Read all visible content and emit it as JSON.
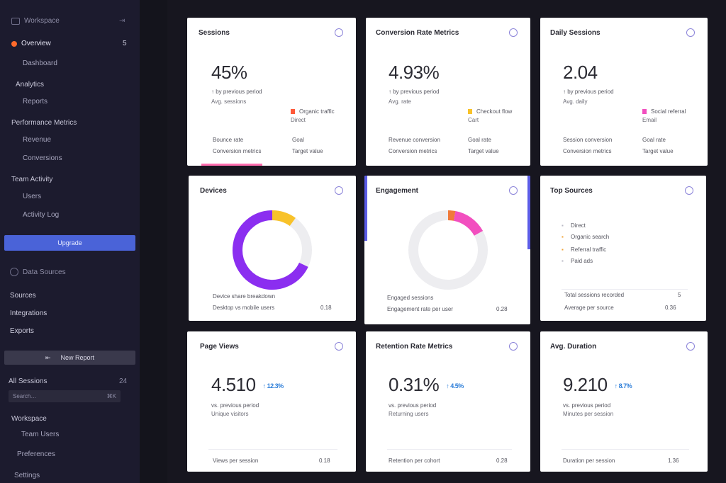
{
  "sidebar": {
    "header": "Workspace",
    "header_right": "⇥",
    "active_item": "Overview",
    "active_count": "5",
    "items": [
      {
        "label": "Dashboard"
      },
      {
        "label": "Analytics"
      },
      {
        "label": "Reports"
      },
      {
        "label": "Performance Metrics"
      },
      {
        "label": "Revenue"
      },
      {
        "label": "Conversions"
      },
      {
        "label": "Team Activity"
      },
      {
        "label": "Users"
      },
      {
        "label": "Activity Log"
      }
    ],
    "primary_button": "Upgrade",
    "section2_title": "Data Sources",
    "section2_items": [
      {
        "label": "Sources"
      },
      {
        "label": "Integrations"
      },
      {
        "label": "Exports"
      }
    ],
    "secondary_button": "New Report",
    "secondary_icon": "⇤",
    "section3_title": "All Sessions",
    "section3_right": "24",
    "input_placeholder": "Search…",
    "input_right": "⌘K",
    "bottom_items": [
      {
        "label": "Workspace"
      },
      {
        "label": "Team Users"
      },
      {
        "label": "Preferences"
      },
      {
        "label": "Settings"
      }
    ]
  },
  "cards": {
    "c1": {
      "title": "Sessions",
      "value": "45%",
      "sub1": "↑ by previous period",
      "sub2": "Avg. sessions",
      "legend": "Organic traffic",
      "legend2": "Direct",
      "foot_l1": "Bounce rate",
      "foot_l2": "Conversion metrics",
      "foot_r1": "Goal",
      "foot_r2": "Target value"
    },
    "c2": {
      "title": "Conversion Rate Metrics",
      "value": "4.93%",
      "sub1": "↑ by previous period",
      "sub2": "Avg. rate",
      "legend": "Checkout flow",
      "legend2": "Cart",
      "foot_l1": "Revenue conversion",
      "foot_l2": "Conversion metrics",
      "foot_r1": "Goal rate",
      "foot_r2": "Target value"
    },
    "c3": {
      "title": "Daily Sessions",
      "value": "2.04",
      "sub1": "↑ by previous period",
      "sub2": "Avg. daily",
      "legend": "Social referral",
      "legend2": "Email",
      "foot_l1": "Session conversion",
      "foot_l2": "Conversion metrics",
      "foot_r1": "Goal rate",
      "foot_r2": "Target value"
    },
    "c4": {
      "title": "Devices",
      "foot_l1": "Device share breakdown",
      "foot_l2": "Desktop vs mobile users",
      "foot_r": "0.18"
    },
    "c5": {
      "title": "Engagement",
      "foot_l1": "Engaged sessions",
      "foot_l2": "Engagement rate per user",
      "foot_r": "0.28"
    },
    "c6": {
      "title": "Top Sources",
      "rows": [
        {
          "label": "Direct"
        },
        {
          "label": "Organic search"
        },
        {
          "label": "Referral traffic"
        },
        {
          "label": "Paid ads"
        }
      ],
      "foot_l1": "Total sessions recorded",
      "foot_r1": "5",
      "foot_l2": "Average per source",
      "foot_r2": "0.36"
    },
    "c7": {
      "title": "Page Views",
      "value": "4.510",
      "badge": "↑ 12.3%",
      "sub1": "vs. previous period",
      "sub2": "Unique visitors",
      "foot_l": "Views per session",
      "foot_r": "0.18"
    },
    "c8": {
      "title": "Retention Rate Metrics",
      "value": "0.31%",
      "badge": "↑ 4.5%",
      "sub1": "vs. previous period",
      "sub2": "Returning users",
      "foot_l": "Retention per cohort",
      "foot_r": "0.28"
    },
    "c9": {
      "title": "Avg. Duration",
      "value": "9.210",
      "badge": "↑ 8.7%",
      "sub1": "vs. previous period",
      "sub2": "Minutes per session",
      "foot_l": "Duration per session",
      "foot_r": "1.36"
    }
  },
  "colors": {
    "purple": "#8b2ef0",
    "yellow": "#f8c22a",
    "pink": "#f24fbf",
    "orange": "#f07a3a",
    "ring_track": "#ededf0",
    "accent_blue": "#4a63d8"
  },
  "donuts": {
    "devices": {
      "segments": [
        {
          "color": "purple",
          "fraction": 0.68
        },
        {
          "color": "yellow",
          "fraction": 0.1
        }
      ]
    },
    "engagement": {
      "segments": [
        {
          "color": "orange",
          "fraction": 0.03
        },
        {
          "color": "pink",
          "fraction": 0.14
        }
      ]
    }
  }
}
